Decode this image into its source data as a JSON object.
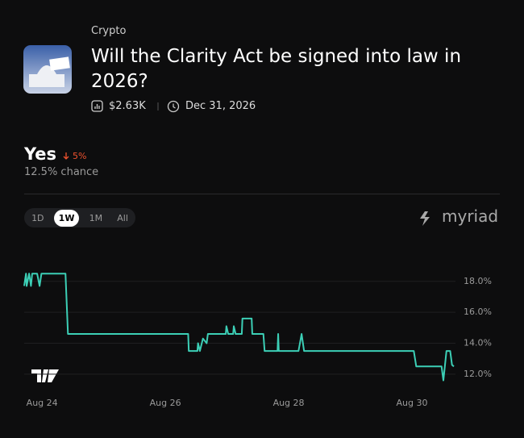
{
  "header": {
    "category": "Crypto",
    "title": "Will the Clarity Act be signed into law in 2026?",
    "volume": "$2.63K",
    "end_date": "Dec 31, 2026"
  },
  "outcome": {
    "name": "Yes",
    "change": "5%",
    "chance": "12.5% chance"
  },
  "tabs": [
    "1D",
    "1W",
    "1M",
    "All"
  ],
  "active_tab": 1,
  "brand": "myriad",
  "chart_data": {
    "type": "line",
    "color": "#3ccfb6",
    "grid": true,
    "x": [
      23.71,
      23.74,
      23.75,
      23.79,
      23.82,
      23.84,
      23.92,
      23.96,
      23.99,
      24.38,
      24.42,
      26.37,
      26.38,
      26.52,
      26.53,
      26.56,
      26.61,
      26.67,
      26.69,
      26.98,
      26.99,
      27.02,
      27.1,
      27.11,
      27.14,
      27.24,
      27.25,
      27.4,
      27.41,
      27.59,
      27.61,
      27.82,
      27.83,
      27.84,
      28.16,
      28.21,
      28.25,
      30.03,
      30.07,
      30.48,
      30.51,
      30.56,
      30.62,
      30.65,
      30.68
    ],
    "values": [
      17.7,
      18.5,
      17.7,
      18.5,
      17.7,
      18.5,
      18.5,
      17.7,
      18.5,
      18.5,
      14.6,
      14.6,
      13.5,
      13.5,
      14.0,
      13.5,
      14.3,
      14.0,
      14.6,
      14.6,
      15.1,
      14.6,
      14.6,
      15.1,
      14.6,
      14.6,
      15.6,
      15.6,
      14.6,
      14.6,
      13.5,
      13.5,
      14.6,
      13.5,
      13.5,
      14.6,
      13.5,
      13.5,
      12.5,
      12.5,
      11.6,
      13.5,
      13.5,
      12.6,
      12.5
    ],
    "xlim": [
      23.71,
      30.68
    ],
    "xticks": [
      {
        "value": 24,
        "label": "Aug 24"
      },
      {
        "value": 26,
        "label": "Aug 26"
      },
      {
        "value": 28,
        "label": "Aug 28"
      },
      {
        "value": 30,
        "label": "Aug 30"
      }
    ],
    "ylim": [
      10.9,
      19.5
    ],
    "yticks": [
      {
        "value": 18,
        "label": "18.0%"
      },
      {
        "value": 16,
        "label": "16.0%"
      },
      {
        "value": 14,
        "label": "14.0%"
      },
      {
        "value": 12,
        "label": "12.0%"
      }
    ]
  }
}
